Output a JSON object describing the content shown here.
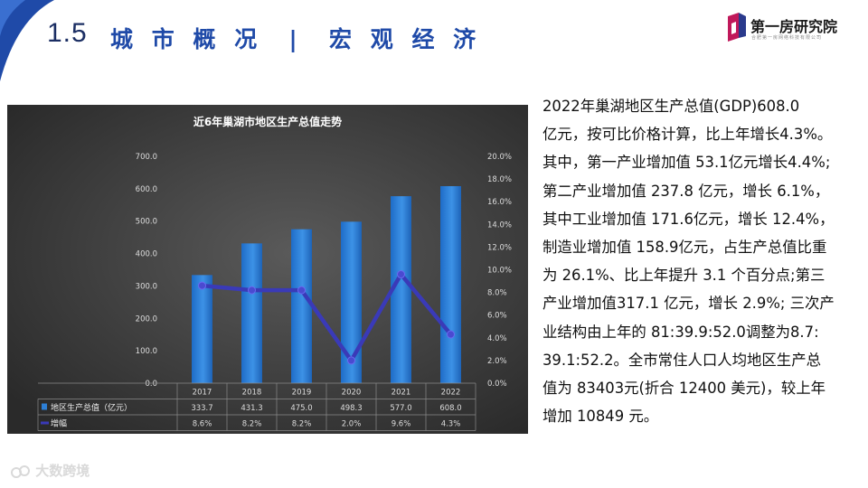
{
  "header": {
    "section_number": "1.5",
    "section_title": "城 市 概 况  |  宏 观 经 济",
    "logo_text": "第一房研究院",
    "logo_subtext": "合肥第一房网络科技有限公司",
    "logo_icon": "building-logo-icon",
    "accent_color": "#1f4aa8"
  },
  "body_text": [
    "2022年巢湖地区生产总值(GDP)608.0",
    "亿元，按可比价格计算，比上年增长4.3%。",
    "其中，第一产业增加值 53.1亿元增长4.4%;",
    "第二产业增加值 237.8 亿元，增长 6.1%，",
    "其中工业增加值 171.6亿元，增长 12.4%，",
    "制造业增加值 158.9亿元，占生产总值比重",
    "为 26.1%、比上年提升 3.1 个百分点;第三",
    "产业增加值317.1 亿元，增长 2.9%; 三次产",
    "业结构由上年的 81:39.9:52.0调整为8.7:",
    "39.1:52.2。全市常住人口人均地区生产总",
    "值为 83403元(折合 12400 美元)，较上年",
    "增加 10849 元。"
  ],
  "watermark": {
    "text": "大数跨境",
    "icon": "bubble-logo-icon"
  },
  "chart_data": {
    "type": "bar",
    "title": "近6年巢湖市地区生产总值走势",
    "categories": [
      "2017",
      "2018",
      "2019",
      "2020",
      "2021",
      "2022"
    ],
    "series": [
      {
        "name": "地区生产总值（亿元）",
        "type": "bar",
        "axis": "left",
        "values": [
          333.7,
          431.3,
          475.0,
          498.3,
          577.0,
          608.0
        ],
        "labels": [
          "333.7",
          "431.3",
          "475.0",
          "498.3",
          "577.0",
          "608.0"
        ],
        "color": "#2d7fd6"
      },
      {
        "name": "增幅",
        "type": "line",
        "axis": "right",
        "values": [
          8.6,
          8.2,
          8.2,
          2.0,
          9.6,
          4.3
        ],
        "labels": [
          "8.6%",
          "8.2%",
          "8.2%",
          "2.0%",
          "9.6%",
          "4.3%"
        ],
        "color": "#3a3ab8"
      }
    ],
    "ylim": [
      0,
      700
    ],
    "y_ticks": [
      "0.0",
      "100.0",
      "200.0",
      "300.0",
      "400.0",
      "500.0",
      "600.0",
      "700.0"
    ],
    "y2lim": [
      0,
      20
    ],
    "y2_ticks": [
      "0.0%",
      "2.0%",
      "4.0%",
      "6.0%",
      "8.0%",
      "10.0%",
      "12.0%",
      "14.0%",
      "16.0%",
      "18.0%",
      "20.0%"
    ],
    "grid": false,
    "legend": "data-table-below",
    "background_color": "#3c3c3c"
  }
}
